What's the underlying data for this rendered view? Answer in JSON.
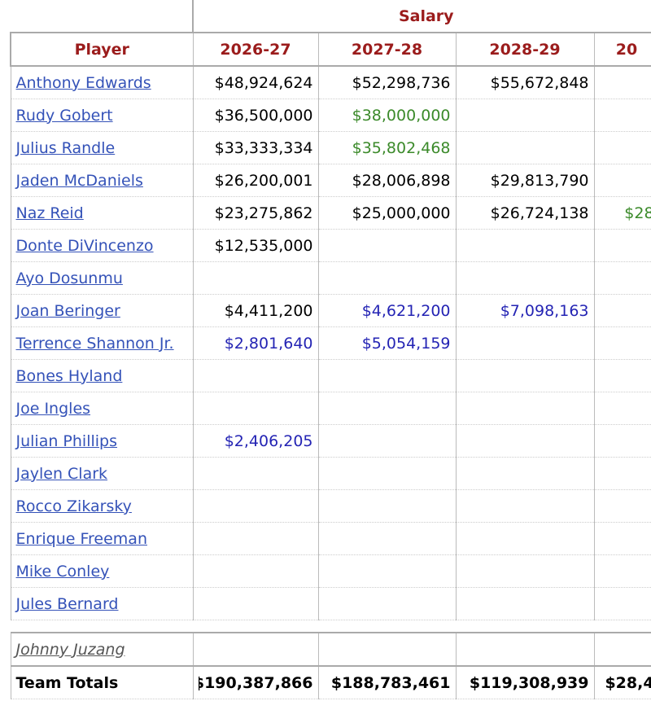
{
  "header": {
    "group": "Salary",
    "columns": [
      "Player",
      "2026-27",
      "2027-28",
      "2028-29",
      "20"
    ]
  },
  "rows": [
    {
      "player": "Anthony Edwards",
      "cells": [
        {
          "text": "$48,924,624"
        },
        {
          "text": "$52,298,736"
        },
        {
          "text": "$55,672,848"
        },
        null
      ]
    },
    {
      "player": "Rudy Gobert",
      "cells": [
        {
          "text": "$36,500,000"
        },
        {
          "text": "$38,000,000",
          "color": "#3b8a2a"
        },
        null,
        null
      ]
    },
    {
      "player": "Julius Randle",
      "cells": [
        {
          "text": "$33,333,334"
        },
        {
          "text": "$35,802,468",
          "color": "#3b8a2a"
        },
        null,
        null
      ]
    },
    {
      "player": "Jaden McDaniels",
      "cells": [
        {
          "text": "$26,200,001"
        },
        {
          "text": "$28,006,898"
        },
        {
          "text": "$29,813,790"
        },
        null
      ]
    },
    {
      "player": "Naz Reid",
      "cells": [
        {
          "text": "$23,275,862"
        },
        {
          "text": "$25,000,000"
        },
        {
          "text": "$26,724,138"
        },
        {
          "text": "$28",
          "color": "#3b8a2a"
        }
      ]
    },
    {
      "player": "Donte DiVincenzo",
      "cells": [
        {
          "text": "$12,535,000"
        },
        null,
        null,
        null
      ]
    },
    {
      "player": "Ayo Dosunmu",
      "cells": [
        null,
        null,
        null,
        null
      ]
    },
    {
      "player": "Joan Beringer",
      "cells": [
        {
          "text": "$4,411,200"
        },
        {
          "text": "$4,621,200",
          "color": "#2424b4"
        },
        {
          "text": "$7,098,163",
          "color": "#2424b4"
        },
        null
      ]
    },
    {
      "player": "Terrence Shannon Jr.",
      "cells": [
        {
          "text": "$2,801,640",
          "color": "#2424b4"
        },
        {
          "text": "$5,054,159",
          "color": "#2424b4"
        },
        null,
        null
      ]
    },
    {
      "player": "Bones Hyland",
      "cells": [
        null,
        null,
        null,
        null
      ]
    },
    {
      "player": "Joe Ingles",
      "cells": [
        null,
        null,
        null,
        null
      ]
    },
    {
      "player": "Julian Phillips",
      "cells": [
        {
          "text": "$2,406,205",
          "color": "#2424b4"
        },
        null,
        null,
        null
      ]
    },
    {
      "player": "Jaylen Clark",
      "cells": [
        null,
        null,
        null,
        null
      ]
    },
    {
      "player": "Rocco Zikarsky",
      "cells": [
        null,
        null,
        null,
        null
      ]
    },
    {
      "player": "Enrique Freeman",
      "cells": [
        null,
        null,
        null,
        null
      ]
    },
    {
      "player": "Mike Conley",
      "cells": [
        null,
        null,
        null,
        null
      ]
    },
    {
      "player": "Jules Bernard",
      "cells": [
        null,
        null,
        null,
        null
      ]
    }
  ],
  "extra_row": {
    "player": "Johnny Juzang",
    "cells": [
      null,
      null,
      null,
      null
    ]
  },
  "totals": {
    "label": "Team Totals",
    "cells": [
      "$190,387,866",
      "$188,783,461",
      "$119,308,939",
      "$28,4"
    ]
  }
}
